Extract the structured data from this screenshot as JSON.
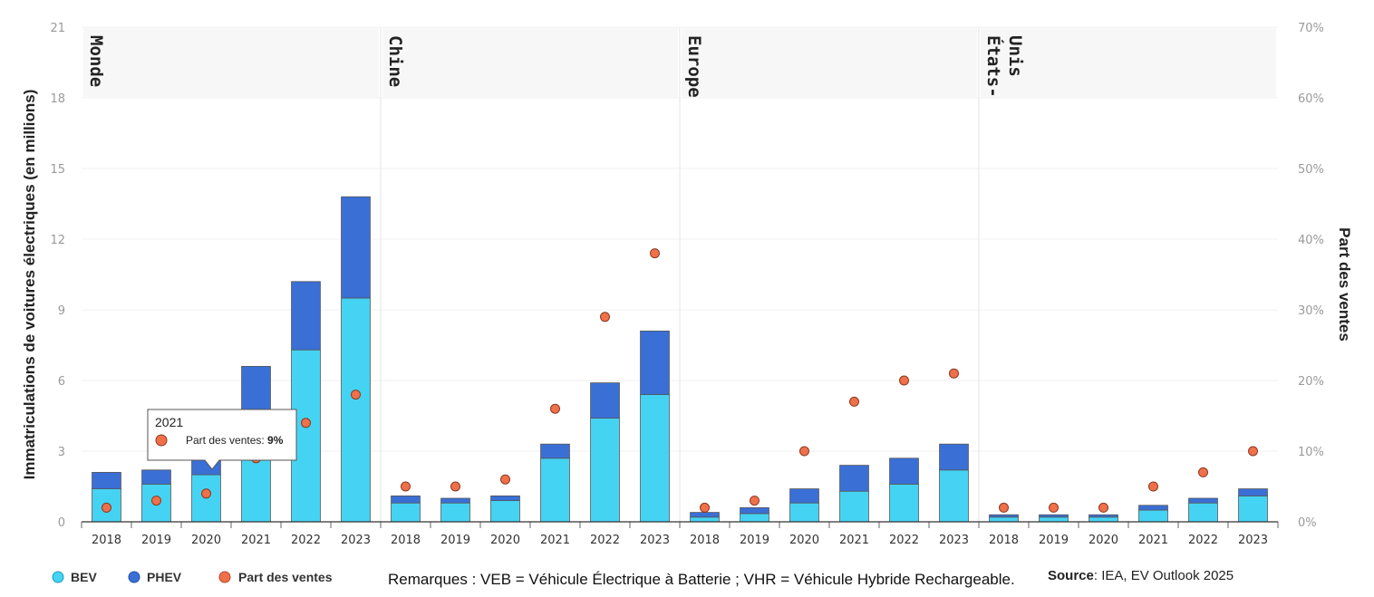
{
  "chart_data": {
    "type": "bar",
    "stacked": true,
    "groups": [
      "Monde",
      "Chine",
      "Europe",
      "États-Unis"
    ],
    "categories": [
      "2018",
      "2019",
      "2020",
      "2021",
      "2022",
      "2023"
    ],
    "series": [
      {
        "name": "BEV",
        "color": "#45d3f3",
        "values": [
          [
            1.4,
            1.6,
            2.0,
            4.4,
            7.3,
            9.5
          ],
          [
            0.8,
            0.8,
            0.9,
            2.7,
            4.4,
            5.4
          ],
          [
            0.2,
            0.35,
            0.8,
            1.3,
            1.6,
            2.2
          ],
          [
            0.2,
            0.2,
            0.2,
            0.5,
            0.8,
            1.1
          ]
        ]
      },
      {
        "name": "PHEV",
        "color": "#3a6fd6",
        "values": [
          [
            0.7,
            0.6,
            1.0,
            2.2,
            2.9,
            4.3
          ],
          [
            0.3,
            0.2,
            0.2,
            0.6,
            1.5,
            2.7
          ],
          [
            0.2,
            0.25,
            0.6,
            1.1,
            1.1,
            1.1
          ],
          [
            0.1,
            0.1,
            0.1,
            0.2,
            0.2,
            0.3
          ]
        ]
      },
      {
        "name": "Part des ventes",
        "color": "#f0704a",
        "type": "scatter",
        "axis": "right",
        "unit": "%",
        "values": [
          [
            2,
            3,
            4,
            9,
            14,
            18
          ],
          [
            5,
            5,
            6,
            16,
            29,
            38
          ],
          [
            2,
            3,
            10,
            17,
            20,
            21
          ],
          [
            2,
            2,
            2,
            5,
            7,
            10
          ]
        ]
      }
    ],
    "ylabel": "Immatriculations de voitures électriques (en millions)",
    "y2label": "Part des ventes",
    "ylim": [
      0,
      21
    ],
    "y2lim": [
      0,
      70
    ],
    "yticks": [
      "0",
      "3",
      "6",
      "9",
      "12",
      "15",
      "18",
      "21"
    ],
    "y2ticks": [
      "0%",
      "10%",
      "20%",
      "30%",
      "40%",
      "50%",
      "60%",
      "70%"
    ],
    "legend": [
      "BEV",
      "PHEV",
      "Part des ventes"
    ],
    "legend_position": "bottom-left"
  },
  "tooltip": {
    "year": "2021",
    "label": "Part des ventes: ",
    "value": "9%"
  },
  "note": "Remarques : VEB = Véhicule Électrique à Batterie ; VHR = Véhicule Hybride Rechargeable.",
  "source": {
    "label": "Source",
    "text": ": IEA, EV Outlook 2025"
  }
}
